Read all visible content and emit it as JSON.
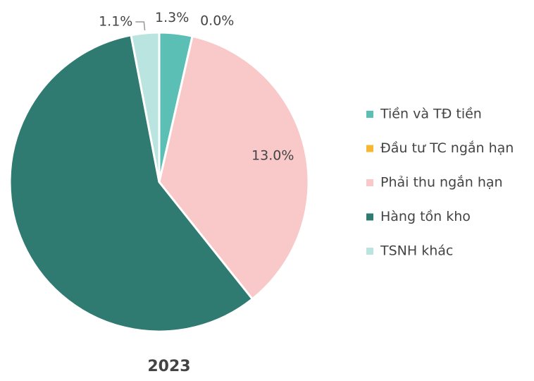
{
  "chart_data": {
    "type": "pie",
    "title": "2023",
    "categories": [
      "Tiền và TĐ tiền",
      "Đầu tư TC ngắn hạn",
      "Phải thu ngắn hạn",
      "Hàng tồn kho",
      "TSNH khác"
    ],
    "values": [
      1.3,
      0.0,
      13.0,
      21.0,
      1.1
    ],
    "value_labels": [
      "1.3%",
      "0.0%",
      "13.0%",
      null,
      "1.1%"
    ],
    "colors": [
      "#5cbfb6",
      "#f7b733",
      "#f9c9c9",
      "#2f7b72",
      "#bae4e0"
    ],
    "legend": "right"
  }
}
